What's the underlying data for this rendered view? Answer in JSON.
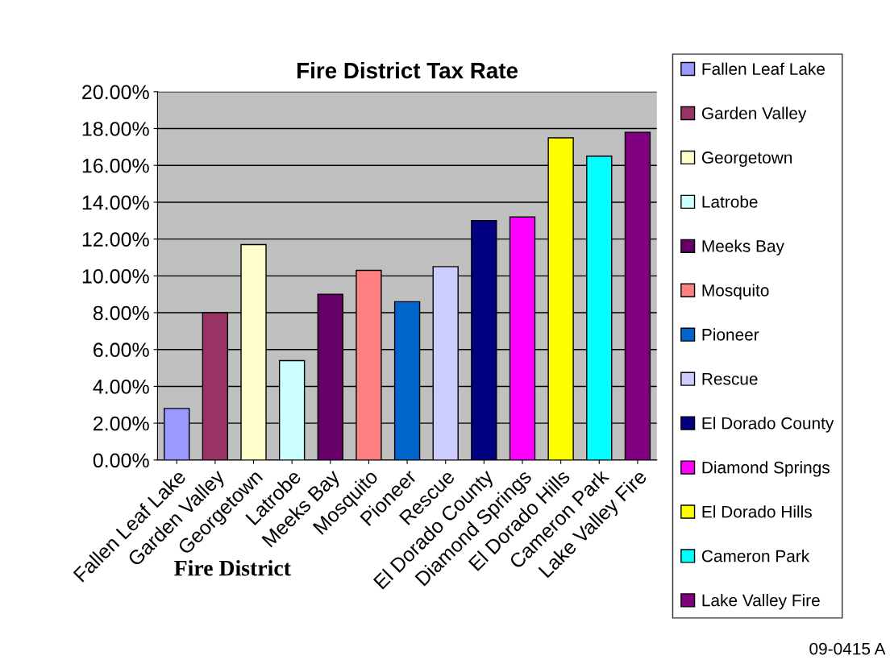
{
  "chart_data": {
    "type": "bar",
    "title": "Fire District Tax Rate",
    "xlabel": "Fire District",
    "categories": [
      "Fallen Leaf Lake",
      "Garden Valley",
      "Georgetown",
      "Latrobe",
      "Meeks Bay",
      "Mosquito",
      "Pioneer",
      "Rescue",
      "El Dorado County",
      "Diamond Springs",
      "El Dorado Hills",
      "Cameron Park",
      "Lake Valley Fire"
    ],
    "series": [
      {
        "name": "Fallen Leaf Lake",
        "color": "#9999ff",
        "values": [
          2.8,
          null,
          null,
          null,
          null,
          null,
          null,
          null,
          null,
          null,
          null,
          null,
          null
        ]
      },
      {
        "name": "Garden Valley",
        "color": "#993366",
        "values": [
          null,
          8.0,
          null,
          null,
          null,
          null,
          null,
          null,
          null,
          null,
          null,
          null,
          null
        ]
      },
      {
        "name": "Georgetown",
        "color": "#ffffcc",
        "values": [
          null,
          null,
          11.7,
          null,
          null,
          null,
          null,
          null,
          null,
          null,
          null,
          null,
          null
        ]
      },
      {
        "name": "Latrobe",
        "color": "#ccffff",
        "values": [
          null,
          null,
          null,
          5.4,
          null,
          null,
          null,
          null,
          null,
          null,
          null,
          null,
          null
        ]
      },
      {
        "name": "Meeks Bay",
        "color": "#660066",
        "values": [
          null,
          null,
          null,
          null,
          9.0,
          null,
          null,
          null,
          null,
          null,
          null,
          null,
          null
        ]
      },
      {
        "name": "Mosquito",
        "color": "#ff8080",
        "values": [
          null,
          null,
          null,
          null,
          null,
          10.3,
          null,
          null,
          null,
          null,
          null,
          null,
          null
        ]
      },
      {
        "name": "Pioneer",
        "color": "#0066cc",
        "values": [
          null,
          null,
          null,
          null,
          null,
          null,
          8.6,
          null,
          null,
          null,
          null,
          null,
          null
        ]
      },
      {
        "name": "Rescue",
        "color": "#ccccff",
        "values": [
          null,
          null,
          null,
          null,
          null,
          null,
          null,
          10.5,
          null,
          null,
          null,
          null,
          null
        ]
      },
      {
        "name": "El Dorado County",
        "color": "#000080",
        "values": [
          null,
          null,
          null,
          null,
          null,
          null,
          null,
          null,
          13.0,
          null,
          null,
          null,
          null
        ]
      },
      {
        "name": "Diamond Springs",
        "color": "#ff00ff",
        "values": [
          null,
          null,
          null,
          null,
          null,
          null,
          null,
          null,
          null,
          13.2,
          null,
          null,
          null
        ]
      },
      {
        "name": "El Dorado Hills",
        "color": "#ffff00",
        "values": [
          null,
          null,
          null,
          null,
          null,
          null,
          null,
          null,
          null,
          null,
          17.5,
          null,
          null
        ]
      },
      {
        "name": "Cameron Park",
        "color": "#00ffff",
        "values": [
          null,
          null,
          null,
          null,
          null,
          null,
          null,
          null,
          null,
          null,
          null,
          16.5,
          null
        ]
      },
      {
        "name": "Lake Valley Fire",
        "color": "#800080",
        "values": [
          null,
          null,
          null,
          null,
          null,
          null,
          null,
          null,
          null,
          null,
          null,
          null,
          17.8
        ]
      }
    ],
    "ylim": [
      0,
      20
    ],
    "yticks": [
      {
        "value": 0,
        "label": "0.00%"
      },
      {
        "value": 2,
        "label": "2.00%"
      },
      {
        "value": 4,
        "label": "4.00%"
      },
      {
        "value": 6,
        "label": "6.00%"
      },
      {
        "value": 8,
        "label": "8.00%"
      },
      {
        "value": 10,
        "label": "10.00%"
      },
      {
        "value": 12,
        "label": "12.00%"
      },
      {
        "value": 14,
        "label": "14.00%"
      },
      {
        "value": 16,
        "label": "16.00%"
      },
      {
        "value": 18,
        "label": "18.00%"
      },
      {
        "value": 20,
        "label": "20.00%"
      }
    ],
    "grid": "y",
    "legend": "right",
    "annotations": [
      "09-0415 A"
    ]
  }
}
